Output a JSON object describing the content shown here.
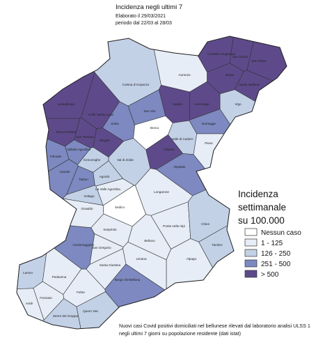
{
  "header": {
    "title": "Incidenza   negli   ultimi   7",
    "lines": [
      "Elaborato il 29/03/2021",
      "periodo  dal 22/03 al 28/03"
    ]
  },
  "legend": {
    "title_lines": [
      "Incidenza",
      "settimanale",
      "su 100.000"
    ],
    "items": [
      {
        "label": "Nessun caso",
        "color": "#ffffff"
      },
      {
        "label": "1 - 125",
        "color": "#e6edf6"
      },
      {
        "label": "126 - 250",
        "color": "#c3d1e7"
      },
      {
        "label": "251 - 500",
        "color": "#7d89c0"
      },
      {
        "label": "> 500",
        "color": "#5e4a8a"
      }
    ]
  },
  "municipalities": [
    {
      "name": "Comelico Superiore",
      "legend_class": 4
    },
    {
      "name": "San Nicolò",
      "legend_class": 4
    },
    {
      "name": "San Pietro",
      "legend_class": 4
    },
    {
      "name": "Danta",
      "legend_class": 4
    },
    {
      "name": "Santo Stefano",
      "legend_class": 4
    },
    {
      "name": "Auronzo",
      "legend_class": 1
    },
    {
      "name": "Cortina d'Ampezzo",
      "legend_class": 2
    },
    {
      "name": "Vigo",
      "legend_class": 2
    },
    {
      "name": "Livinallongo",
      "legend_class": 4
    },
    {
      "name": "Colle Santa Lucia",
      "legend_class": 4
    },
    {
      "name": "Selva",
      "legend_class": 3
    },
    {
      "name": "San Vito",
      "legend_class": 3
    },
    {
      "name": "Calalzo",
      "legend_class": 4
    },
    {
      "name": "Domegge",
      "legend_class": 3
    },
    {
      "name": "Lorenzago",
      "legend_class": 4
    },
    {
      "name": "Borca",
      "legend_class": 0
    },
    {
      "name": "Rocca Pietore",
      "legend_class": 4
    },
    {
      "name": "San Tomaso",
      "legend_class": 4
    },
    {
      "name": "Alleghe",
      "legend_class": 4
    },
    {
      "name": "Falcade",
      "legend_class": 3
    },
    {
      "name": "Vallada Agordina",
      "legend_class": 3
    },
    {
      "name": "Cencenighe",
      "legend_class": 2
    },
    {
      "name": "Canale",
      "legend_class": 3
    },
    {
      "name": "Taibon",
      "legend_class": 3
    },
    {
      "name": "Val di Zoldo",
      "legend_class": 2
    },
    {
      "name": "Agordo",
      "legend_class": 2
    },
    {
      "name": "Valle di Cadore",
      "legend_class": 2
    },
    {
      "name": "Cibiana",
      "legend_class": 4
    },
    {
      "name": "Pieve",
      "legend_class": 1
    },
    {
      "name": "Ospitale",
      "legend_class": 3
    },
    {
      "name": "La Valle Agordina",
      "legend_class": 1
    },
    {
      "name": "Voltago",
      "legend_class": 2
    },
    {
      "name": "Longarone",
      "legend_class": 1
    },
    {
      "name": "Gosaldo",
      "legend_class": 1
    },
    {
      "name": "Sedico",
      "legend_class": 0
    },
    {
      "name": "Sospirolo",
      "legend_class": 1
    },
    {
      "name": "Ponte nelle Alpi",
      "legend_class": 1
    },
    {
      "name": "Chies",
      "legend_class": 2
    },
    {
      "name": "Tambre",
      "legend_class": 2
    },
    {
      "name": "Belluno",
      "legend_class": 1
    },
    {
      "name": "Alpago",
      "legend_class": 1
    },
    {
      "name": "Cesiomaggiore",
      "legend_class": 3
    },
    {
      "name": "San Gregorio",
      "legend_class": 1
    },
    {
      "name": "Santa Giustina",
      "legend_class": 1
    },
    {
      "name": "Limana",
      "legend_class": 1
    },
    {
      "name": "Borgo Val Belluna",
      "legend_class": 3
    },
    {
      "name": "Lamon",
      "legend_class": 2
    },
    {
      "name": "Pedavena",
      "legend_class": 1
    },
    {
      "name": "Feltre",
      "legend_class": 1
    },
    {
      "name": "Fonzaso",
      "legend_class": 1
    },
    {
      "name": "Arsiè",
      "legend_class": 1
    },
    {
      "name": "Seren del Grappa",
      "legend_class": 2
    },
    {
      "name": "Quero Vas",
      "legend_class": 2
    }
  ],
  "footnote": [
    "Nuovi casi Covid positivi domiciliati nel bellunese rilevati dal laboratorio analisi ULSS 1",
    "negli ultimi 7 giorni su popolazione residente (dati istat)"
  ]
}
